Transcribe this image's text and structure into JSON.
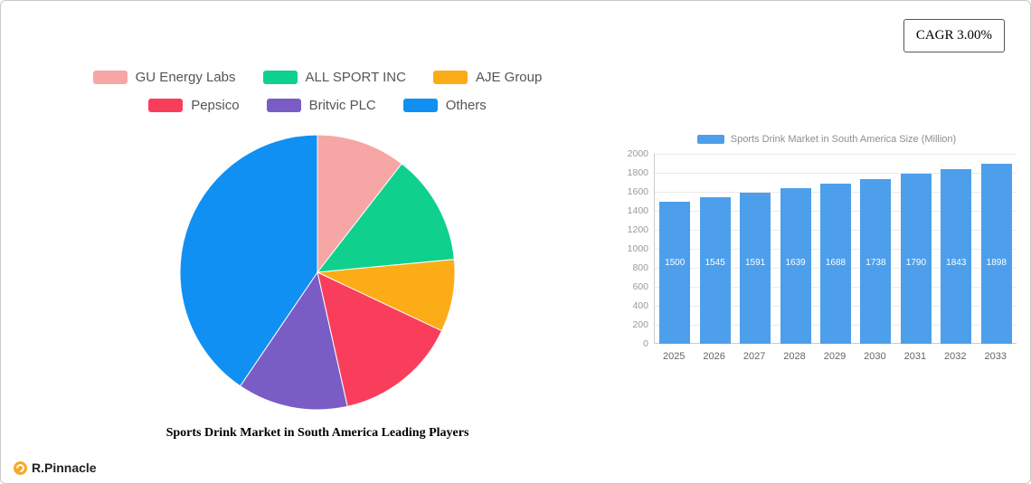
{
  "cagr": {
    "label": "CAGR 3.00%"
  },
  "brand": {
    "name": "R.Pinnacle",
    "dot_color": "#F9A825"
  },
  "chart_data": [
    {
      "type": "pie",
      "title": "Sports Drink Market in South America Leading Players",
      "legend_position": "top",
      "slices": [
        {
          "label": "GU Energy Labs",
          "value": 10.5,
          "color": "#F7A6A6"
        },
        {
          "label": "ALL SPORT INC",
          "value": 13.0,
          "color": "#0FD08C"
        },
        {
          "label": "AJE Group",
          "value": 8.5,
          "color": "#FBAC17"
        },
        {
          "label": "Pepsico",
          "value": 14.5,
          "color": "#F93E5C"
        },
        {
          "label": "Britvic PLC",
          "value": 13.0,
          "color": "#7A5CC5"
        },
        {
          "label": "Others",
          "value": 40.5,
          "color": "#1090F2"
        }
      ]
    },
    {
      "type": "bar",
      "legend": "Sports Drink Market in South America Size (Million)",
      "categories": [
        "2025",
        "2026",
        "2027",
        "2028",
        "2029",
        "2030",
        "2031",
        "2032",
        "2033"
      ],
      "values": [
        1500,
        1545,
        1591,
        1639,
        1688,
        1738,
        1790,
        1843,
        1898
      ],
      "bar_color": "#4D9FEB",
      "ylim": [
        0,
        2000
      ],
      "y_tick_step": 200,
      "grid": true,
      "legend_position": "top"
    }
  ]
}
